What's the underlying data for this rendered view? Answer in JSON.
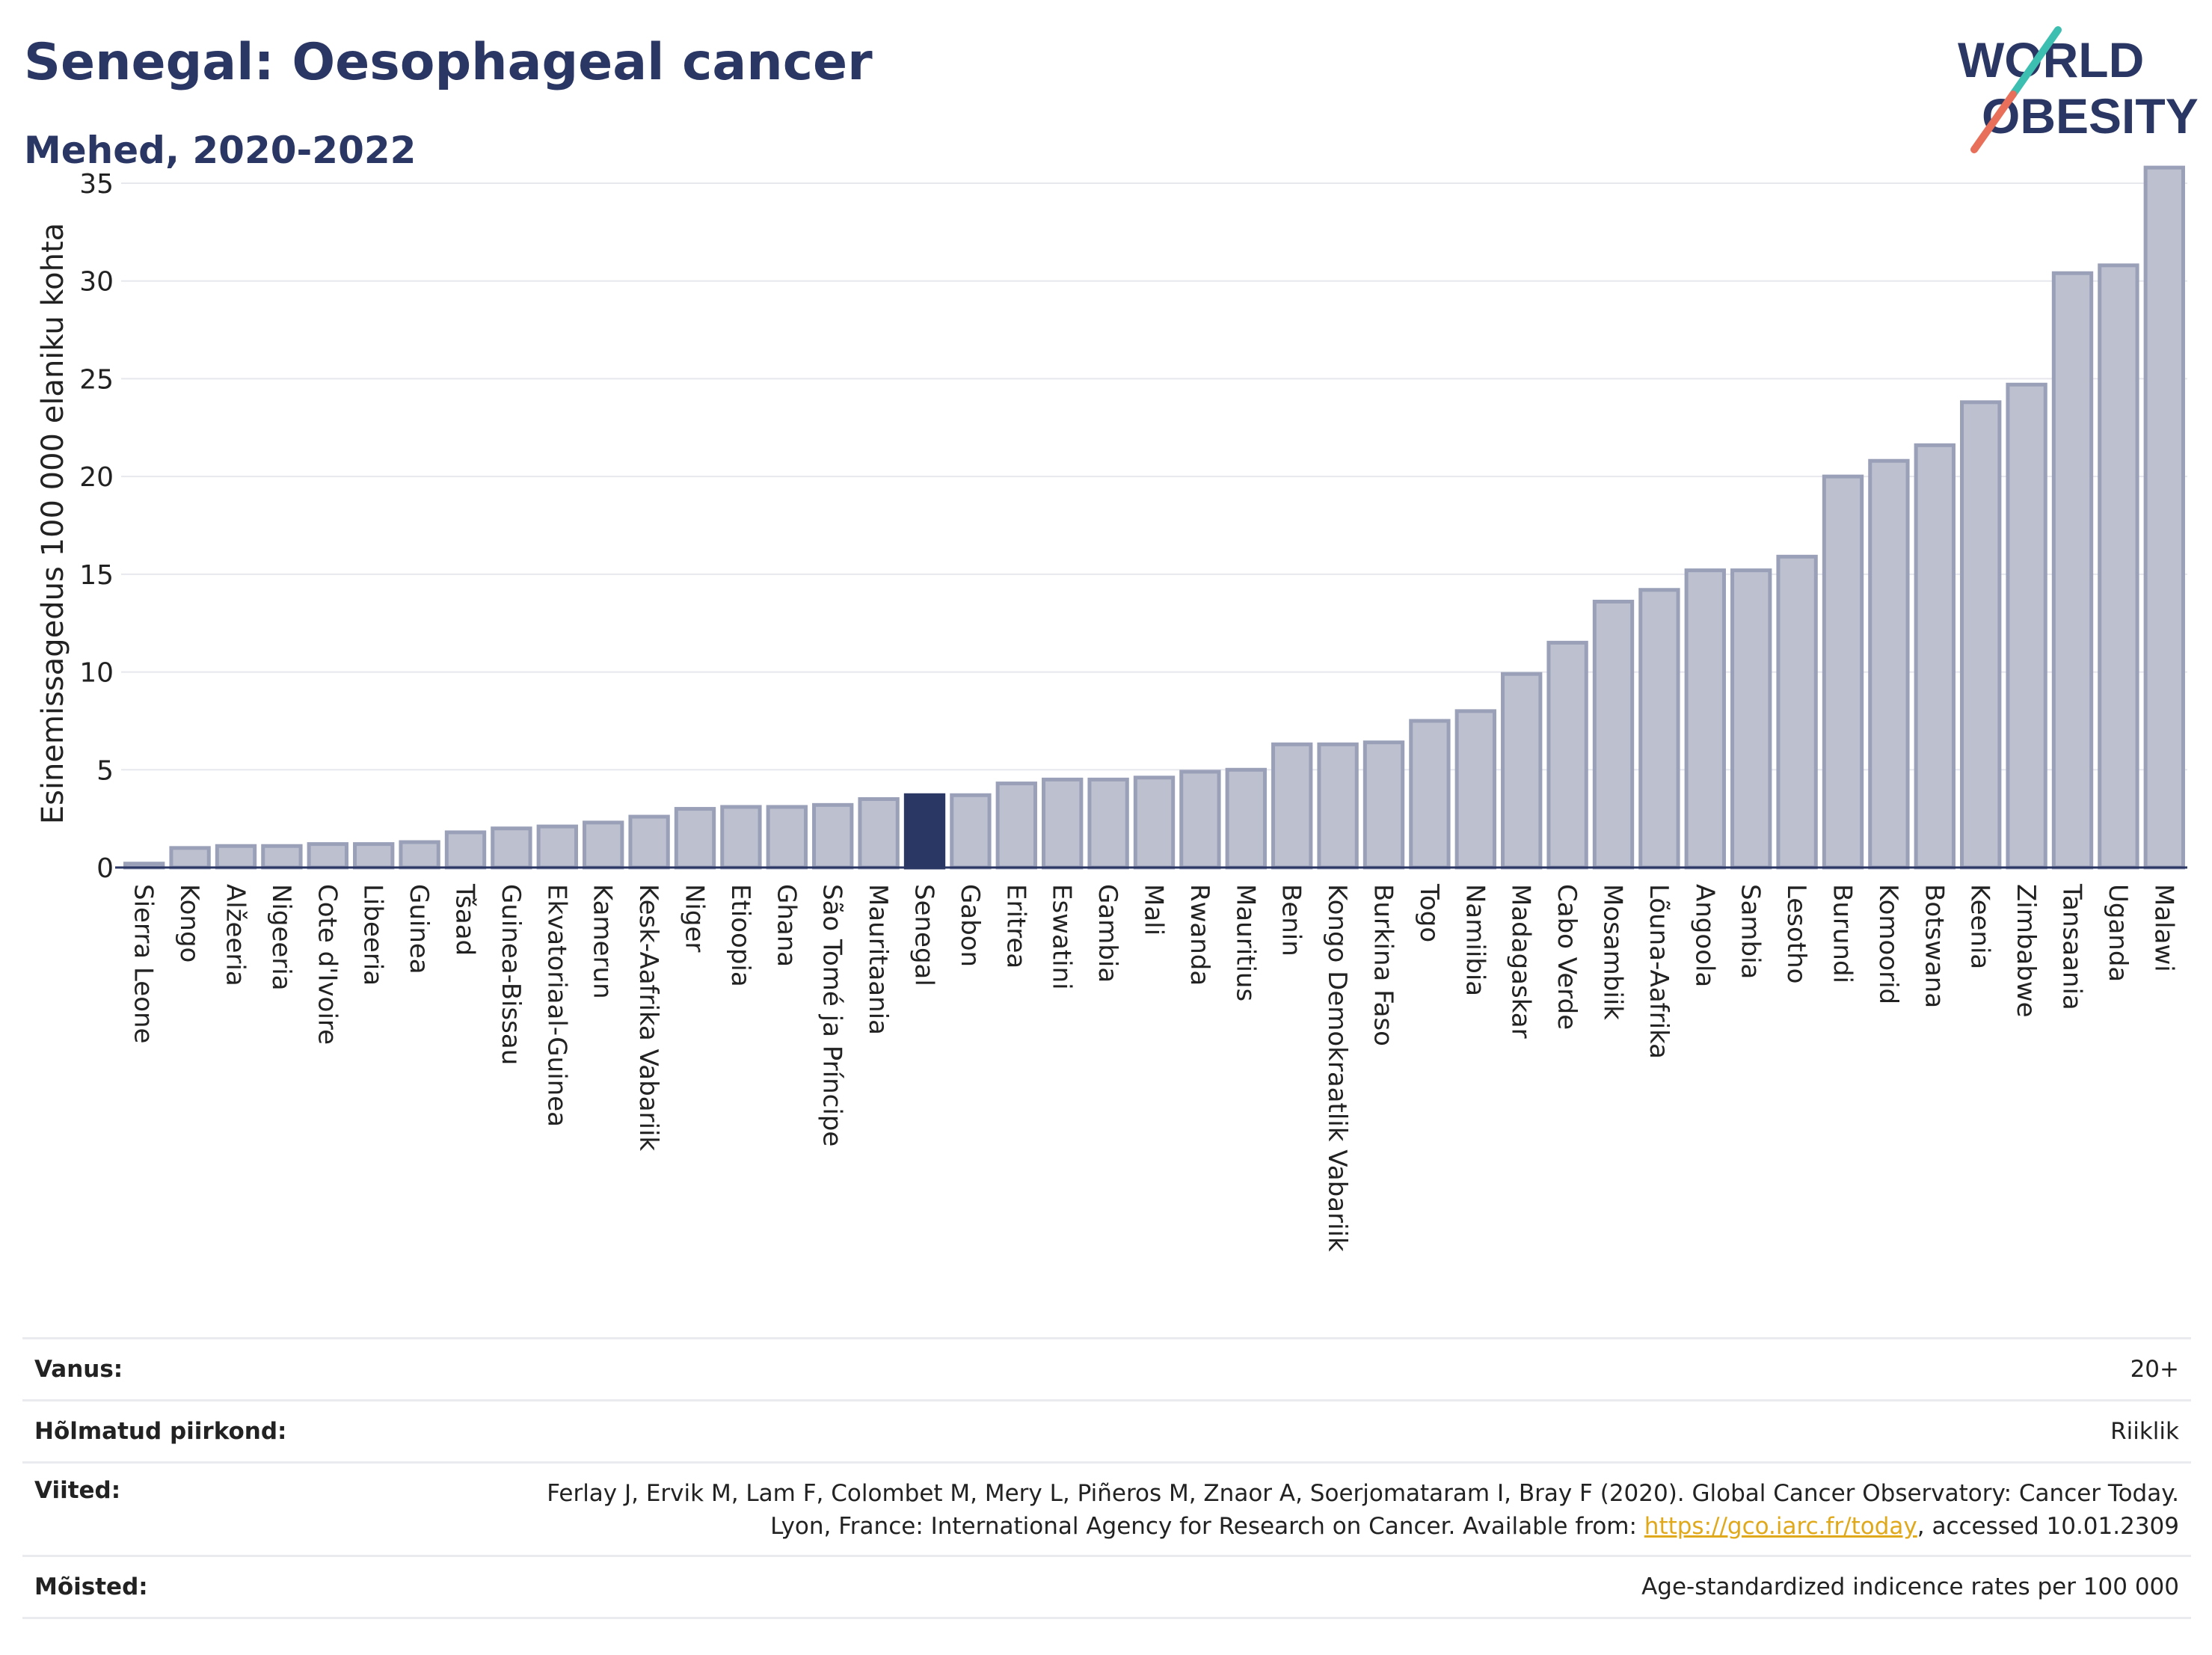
{
  "header": {
    "title": "Senegal: Oesophageal cancer",
    "subtitle": "Mehed, 2020-2022"
  },
  "logo": {
    "line1": "WORLD",
    "line2": "OBESITY"
  },
  "colors": {
    "bar": "#bcc0cf",
    "bar_border": "#9aa0b8",
    "highlight": "#2a3663",
    "text": "#222222",
    "grid": "#e6e8ee",
    "link": "#e0a91c"
  },
  "chart_data": {
    "type": "bar",
    "title": "Senegal: Oesophageal cancer",
    "ylabel": "Esinemissagedus 100 000 elaniku kohta",
    "xlabel": "",
    "ylim": [
      0,
      37
    ],
    "yticks": [
      0,
      5,
      10,
      15,
      20,
      25,
      30,
      35
    ],
    "highlight": "Senegal",
    "categories": [
      "Sierra Leone",
      "Kongo",
      "Alžeeria",
      "Nigeeria",
      "Cote d'Ivoire",
      "Libeeria",
      "Guinea",
      "Tšaad",
      "Guinea-Bissau",
      "Ekvatoriaal-Guinea",
      "Kamerun",
      "Kesk-Aafrika Vabariik",
      "Niger",
      "Etioopia",
      "Ghana",
      "São Tomé ja Príncipe",
      "Mauritaania",
      "Senegal",
      "Gabon",
      "Eritrea",
      "Eswatini",
      "Gambia",
      "Mali",
      "Rwanda",
      "Mauritius",
      "Benin",
      "Kongo Demokraatlik Vabariik",
      "Burkina Faso",
      "Togo",
      "Namiibia",
      "Madagaskar",
      "Cabo Verde",
      "Mosambiik",
      "Lõuna-Aafrika",
      "Angoola",
      "Sambia",
      "Lesotho",
      "Burundi",
      "Komoorid",
      "Botswana",
      "Keenia",
      "Zimbabwe",
      "Tansaania",
      "Uganda",
      "Malawi"
    ],
    "values": [
      0.2,
      1.0,
      1.1,
      1.1,
      1.2,
      1.2,
      1.3,
      1.8,
      2.0,
      2.1,
      2.3,
      2.6,
      3.0,
      3.1,
      3.1,
      3.2,
      3.5,
      3.7,
      3.7,
      4.3,
      4.5,
      4.5,
      4.6,
      4.9,
      5.0,
      6.3,
      6.3,
      6.4,
      7.5,
      8.0,
      9.9,
      11.5,
      13.6,
      14.2,
      15.2,
      15.2,
      15.9,
      20.0,
      20.8,
      21.6,
      23.8,
      24.7,
      30.4,
      30.8,
      35.8
    ]
  },
  "info": {
    "age_label": "Vanus:",
    "age_value": "20+",
    "region_label": "Hõlmatud piirkond:",
    "region_value": "Riiklik",
    "refs_label": "Viited:",
    "refs_text_1": "Ferlay J, Ervik M, Lam F, Colombet M, Mery L, Piñeros M, Znaor A, Soerjomataram I, Bray F (2020). Global Cancer Observatory: Cancer Today. Lyon, France: International Agency for Research on Cancer. Available from: ",
    "refs_link": "https://gco.iarc.fr/today",
    "refs_text_2": ", accessed 10.01.2309",
    "def_label": "Mõisted:",
    "def_value": "Age-standardized indicence rates per 100 000"
  }
}
